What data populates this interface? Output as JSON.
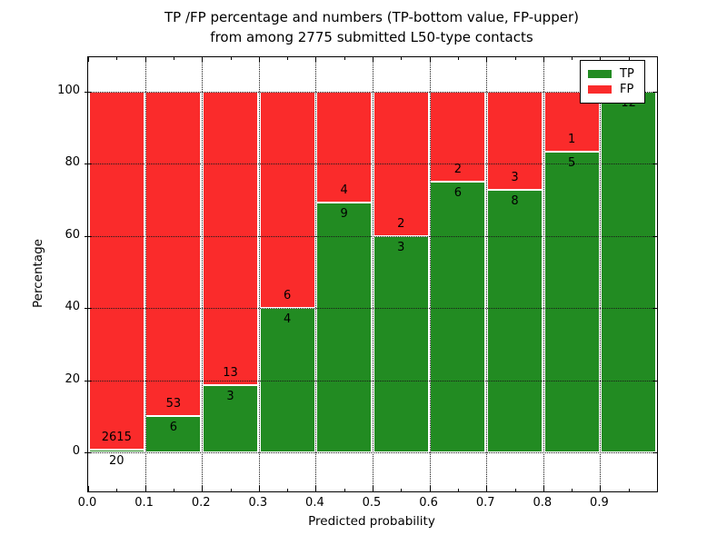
{
  "title": {
    "line1": "TP /FP percentage and numbers (TP-bottom value, FP-upper)",
    "line2": "from among 2775 submitted L50-type contacts"
  },
  "axes": {
    "x_label": "Predicted probability",
    "y_label": "Percentage",
    "x_tick_labels": [
      "0.0",
      "0.1",
      "0.2",
      "0.3",
      "0.4",
      "0.5",
      "0.6",
      "0.7",
      "0.8",
      "0.9"
    ],
    "y_tick_labels": [
      "0",
      "20",
      "40",
      "60",
      "80",
      "100"
    ],
    "y_tick_values": [
      0,
      20,
      40,
      60,
      80,
      100
    ]
  },
  "legend": {
    "items": [
      {
        "label": "TP",
        "color": "#228b22"
      },
      {
        "label": "FP",
        "color": "#fa2b2b"
      }
    ]
  },
  "chart_data": {
    "type": "bar",
    "stacked": true,
    "title": "TP /FP percentage and numbers (TP-bottom value, FP-upper) from among 2775 submitted L50-type contacts",
    "xlabel": "Predicted probability",
    "ylabel": "Percentage",
    "categories": [
      "0.0-0.1",
      "0.1-0.2",
      "0.2-0.3",
      "0.3-0.4",
      "0.4-0.5",
      "0.5-0.6",
      "0.6-0.7",
      "0.7-0.8",
      "0.8-0.9",
      "0.9-1.0"
    ],
    "bin_edges": [
      0.0,
      0.1,
      0.2,
      0.3,
      0.4,
      0.5,
      0.6,
      0.7,
      0.8,
      0.9,
      1.0
    ],
    "series": [
      {
        "name": "TP",
        "color": "#228b22",
        "counts": [
          20,
          6,
          3,
          4,
          9,
          3,
          6,
          8,
          5,
          12
        ],
        "percent_of_bin": [
          0.76,
          10.17,
          18.75,
          40.0,
          69.23,
          60.0,
          75.0,
          72.73,
          83.33,
          100.0
        ]
      },
      {
        "name": "FP",
        "color": "#fa2b2b",
        "counts": [
          2615,
          53,
          13,
          6,
          4,
          2,
          2,
          3,
          1,
          0
        ],
        "percent_of_bin": [
          99.24,
          89.83,
          81.25,
          60.0,
          30.77,
          40.0,
          25.0,
          27.27,
          16.67,
          0.0
        ]
      }
    ],
    "total_contacts": 2775,
    "xlim": [
      0.0,
      1.0
    ],
    "ylim": [
      -11,
      110
    ],
    "grid": "dotted",
    "legend_position": "upper right",
    "value_labels": "counts drawn at TP/FP boundary of each bar (TP below, FP above); FP label omitted for 0.9-1.0 bin (FP=0); TP label of 0.9-1.0 bin partially hidden behind legend"
  }
}
